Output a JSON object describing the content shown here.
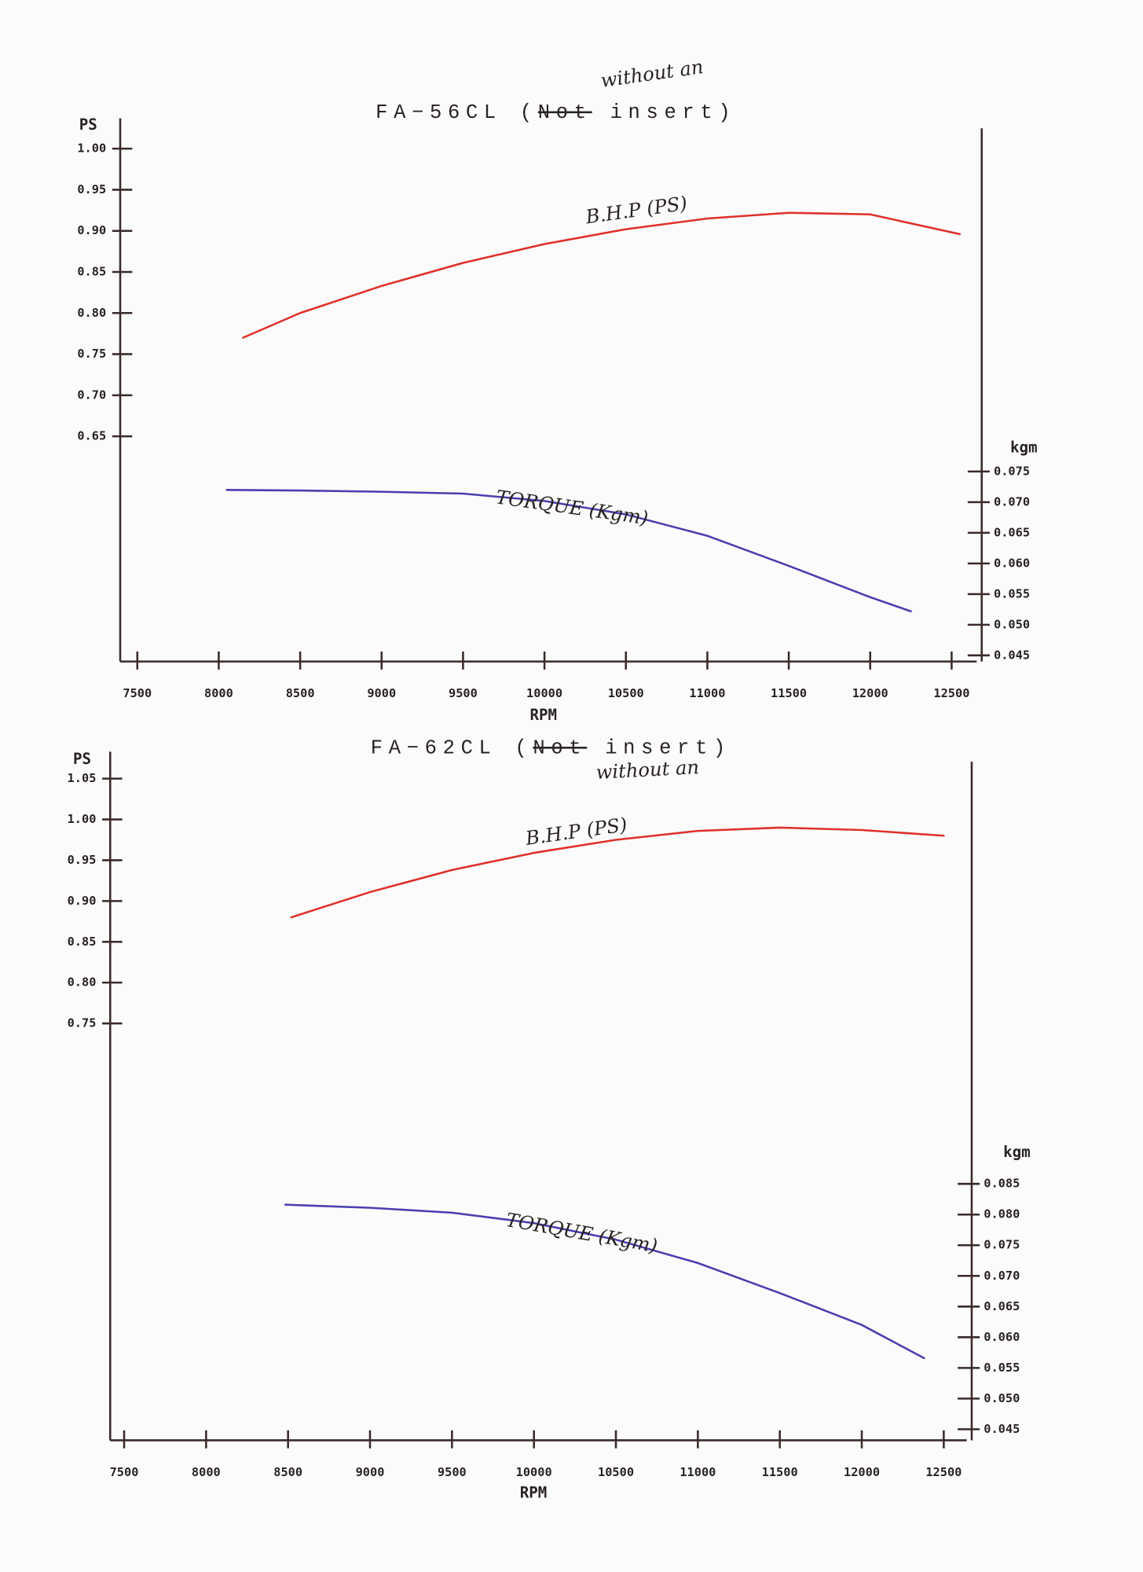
{
  "chart_data": [
    {
      "type": "line",
      "title_prefix": "FA−56CL (",
      "title_struck": "Not",
      "title_suffix": " insert)",
      "annotation": "without an",
      "ylabel": "PS",
      "y2label": "kgm",
      "xlabel": "RPM",
      "xlim": [
        7395,
        12654
      ],
      "xticks": [
        7500,
        8000,
        8500,
        9000,
        9500,
        10000,
        10500,
        11000,
        11500,
        12000,
        12500
      ],
      "ylim": [
        0.376,
        1.037
      ],
      "yticks": [
        {
          "value": 1.0,
          "label": "1.00"
        },
        0.95,
        {
          "value": 0.9,
          "label": "0.90"
        },
        0.85,
        {
          "value": 0.8,
          "label": "0.80"
        },
        0.75,
        {
          "value": 0.7,
          "label": "0.70"
        },
        0.65
      ],
      "y2lim": [
        0.044,
        0.131
      ],
      "y2ticks": [
        0.075,
        {
          "value": 0.07,
          "label": "0.070"
        },
        0.065,
        {
          "value": 0.06,
          "label": "0.060"
        },
        0.055,
        {
          "value": 0.05,
          "label": "0.050"
        },
        0.045
      ],
      "series": [
        {
          "name": "B.H.P (PS)",
          "color": "#e0302a",
          "x": [
            8150,
            8500,
            9000,
            9500,
            10000,
            10500,
            11000,
            11500,
            12000,
            12550
          ],
          "values": [
            0.77,
            0.8,
            0.833,
            0.861,
            0.884,
            0.902,
            0.915,
            0.922,
            0.92,
            0.896
          ]
        },
        {
          "name": "TORQUE (Kgm)",
          "color": "#4a3fb0",
          "axis": "y2",
          "x": [
            8050,
            8500,
            9000,
            9500,
            10000,
            10500,
            11000,
            11500,
            12000,
            12250
          ],
          "values": [
            0.072,
            0.0719,
            0.0717,
            0.0714,
            0.0702,
            0.068,
            0.0645,
            0.0596,
            0.0545,
            0.0522
          ]
        }
      ]
    },
    {
      "type": "line",
      "title_prefix": "FA−62CL (",
      "title_struck": "Not",
      "title_suffix": " insert)",
      "annotation": "without an",
      "ylabel": "PS",
      "y2label": "kgm",
      "xlabel": "RPM",
      "xlim": [
        7415,
        12640
      ],
      "xticks": [
        7500,
        8000,
        8500,
        9000,
        9500,
        10000,
        10500,
        11000,
        11500,
        12000,
        12500
      ],
      "ylim": [
        0.239,
        1.083
      ],
      "yticks": [
        1.05,
        {
          "value": 1.0,
          "label": "1.00"
        },
        0.95,
        {
          "value": 0.9,
          "label": "0.90"
        },
        0.85,
        {
          "value": 0.8,
          "label": "0.80"
        },
        0.75
      ],
      "y2lim": [
        0.0432,
        0.1538
      ],
      "y2ticks": [
        0.085,
        {
          "value": 0.08,
          "label": "0.080"
        },
        0.075,
        {
          "value": 0.07,
          "label": "0.070"
        },
        0.065,
        {
          "value": 0.06,
          "label": "0.060"
        },
        0.055,
        {
          "value": 0.05,
          "label": "0.050"
        },
        0.045
      ],
      "series": [
        {
          "name": "B.H.P (PS)",
          "color": "#e0302a",
          "x": [
            8520,
            9000,
            9500,
            10000,
            10500,
            11000,
            11500,
            12000,
            12500
          ],
          "values": [
            0.88,
            0.911,
            0.938,
            0.959,
            0.975,
            0.986,
            0.99,
            0.987,
            0.98
          ]
        },
        {
          "name": "TORQUE (Kgm)",
          "color": "#4a3fb0",
          "axis": "y2",
          "x": [
            8483,
            9000,
            9500,
            10000,
            10500,
            11000,
            11500,
            12000,
            12380
          ],
          "values": [
            0.0816,
            0.0811,
            0.0803,
            0.0786,
            0.0759,
            0.0721,
            0.0672,
            0.062,
            0.0566
          ]
        }
      ]
    }
  ]
}
